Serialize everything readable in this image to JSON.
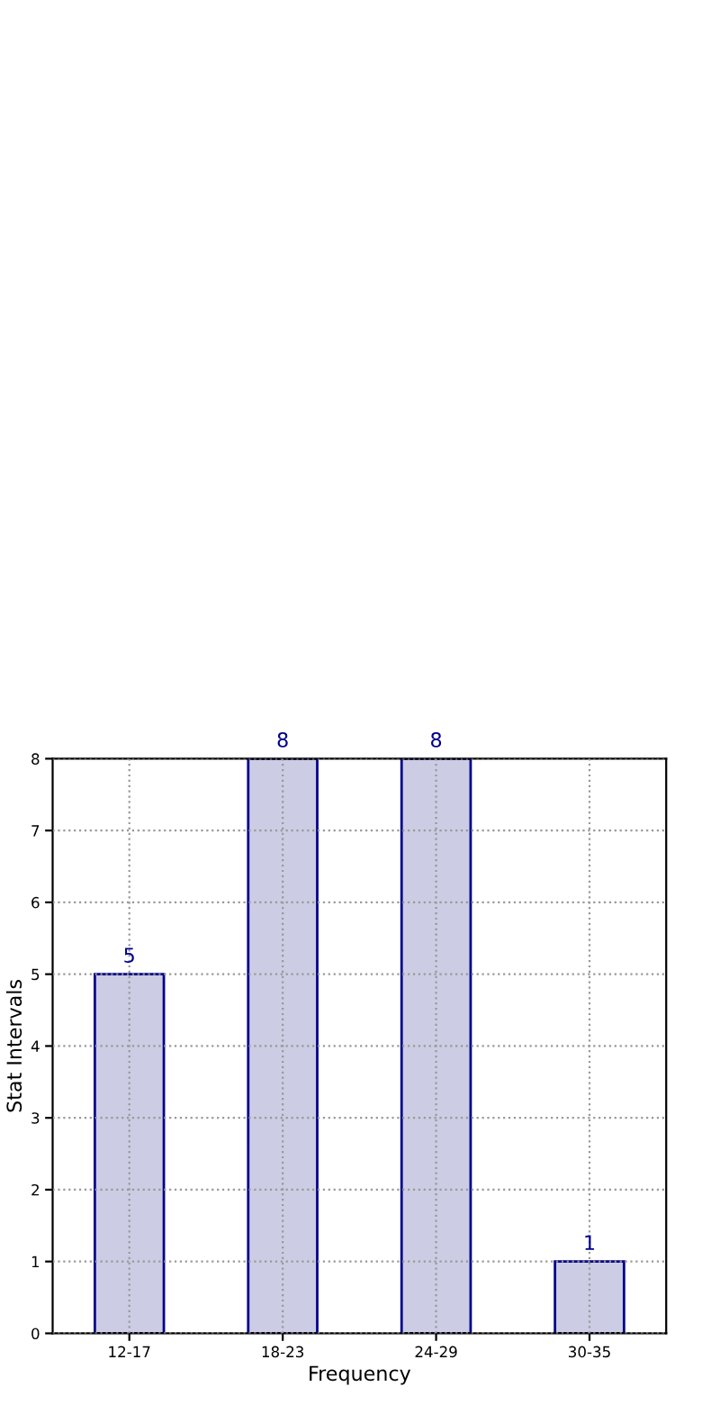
{
  "chart_data": {
    "type": "bar",
    "xlabel": "Frequency",
    "ylabel": "Stat Intervals",
    "categories": [
      "12-17",
      "18-23",
      "24-29",
      "30-35"
    ],
    "values": [
      5,
      8,
      8,
      1
    ],
    "color": "#ccccE4",
    "ylim": [
      0,
      8
    ],
    "yticks": [
      0,
      1,
      2,
      3,
      4,
      5,
      6,
      7,
      8
    ],
    "grid": true,
    "data_labels": true
  }
}
